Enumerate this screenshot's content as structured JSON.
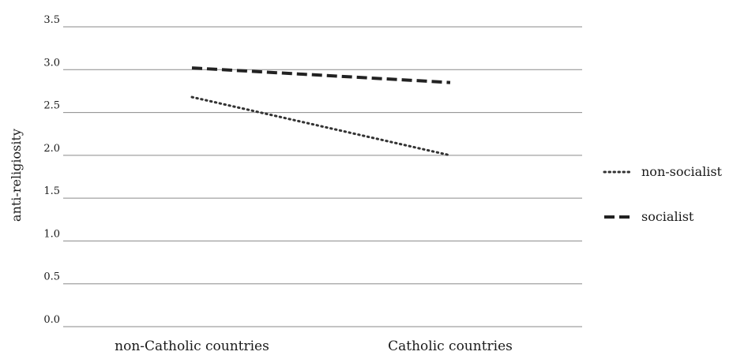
{
  "chart_data": {
    "type": "line",
    "title": "",
    "xlabel": "",
    "ylabel": "anti-religiosity",
    "categories": [
      "non-Catholic countries",
      "Catholic countries"
    ],
    "ylim": [
      0,
      3.5
    ],
    "yticks": [
      0.0,
      0.5,
      1.0,
      1.5,
      2.0,
      2.5,
      3.0,
      3.5
    ],
    "ytick_labels": [
      "0.0",
      "0.5",
      "1.0",
      "1.5",
      "2.0",
      "2.5",
      "3.0",
      "3.5"
    ],
    "grid": true,
    "legend_position": "right",
    "series": [
      {
        "name": "non-socialist",
        "values": [
          2.68,
          2.0
        ],
        "line_style": "dotted",
        "color": "#333333"
      },
      {
        "name": "socialist",
        "values": [
          3.02,
          2.85
        ],
        "line_style": "dashed",
        "color": "#222222"
      }
    ]
  }
}
